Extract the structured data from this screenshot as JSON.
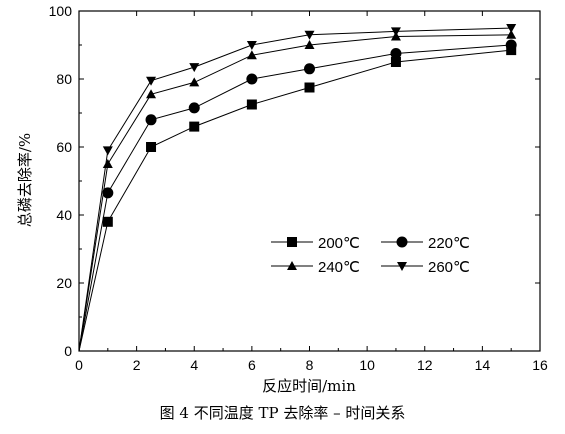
{
  "caption": "图 4   不同温度 TP 去除率 – 时间关系",
  "chart_data": {
    "type": "line",
    "xlabel": "反应时间/min",
    "ylabel": "总磷去除率/%",
    "xlim": [
      0,
      16
    ],
    "ylim": [
      0,
      100
    ],
    "xticks": [
      0,
      2,
      4,
      6,
      8,
      10,
      12,
      14,
      16
    ],
    "yticks": [
      0,
      20,
      40,
      60,
      80,
      100
    ],
    "grid": false,
    "legend_position": "lower-right",
    "x": [
      0,
      1,
      2.5,
      4,
      6,
      8,
      11,
      15
    ],
    "series": [
      {
        "name": "200℃",
        "marker": "square",
        "values": [
          0,
          38,
          60,
          66,
          72.5,
          77.5,
          85,
          88.5
        ]
      },
      {
        "name": "220℃",
        "marker": "circle",
        "values": [
          0,
          46.5,
          68,
          71.5,
          80,
          83,
          87.5,
          90
        ]
      },
      {
        "name": "240℃",
        "marker": "triangle-up",
        "values": [
          0,
          55,
          75.5,
          79,
          87,
          90,
          92.5,
          93
        ]
      },
      {
        "name": "260℃",
        "marker": "triangle-down",
        "values": [
          0,
          59,
          79.5,
          83.5,
          90,
          93,
          94,
          95
        ]
      }
    ]
  }
}
